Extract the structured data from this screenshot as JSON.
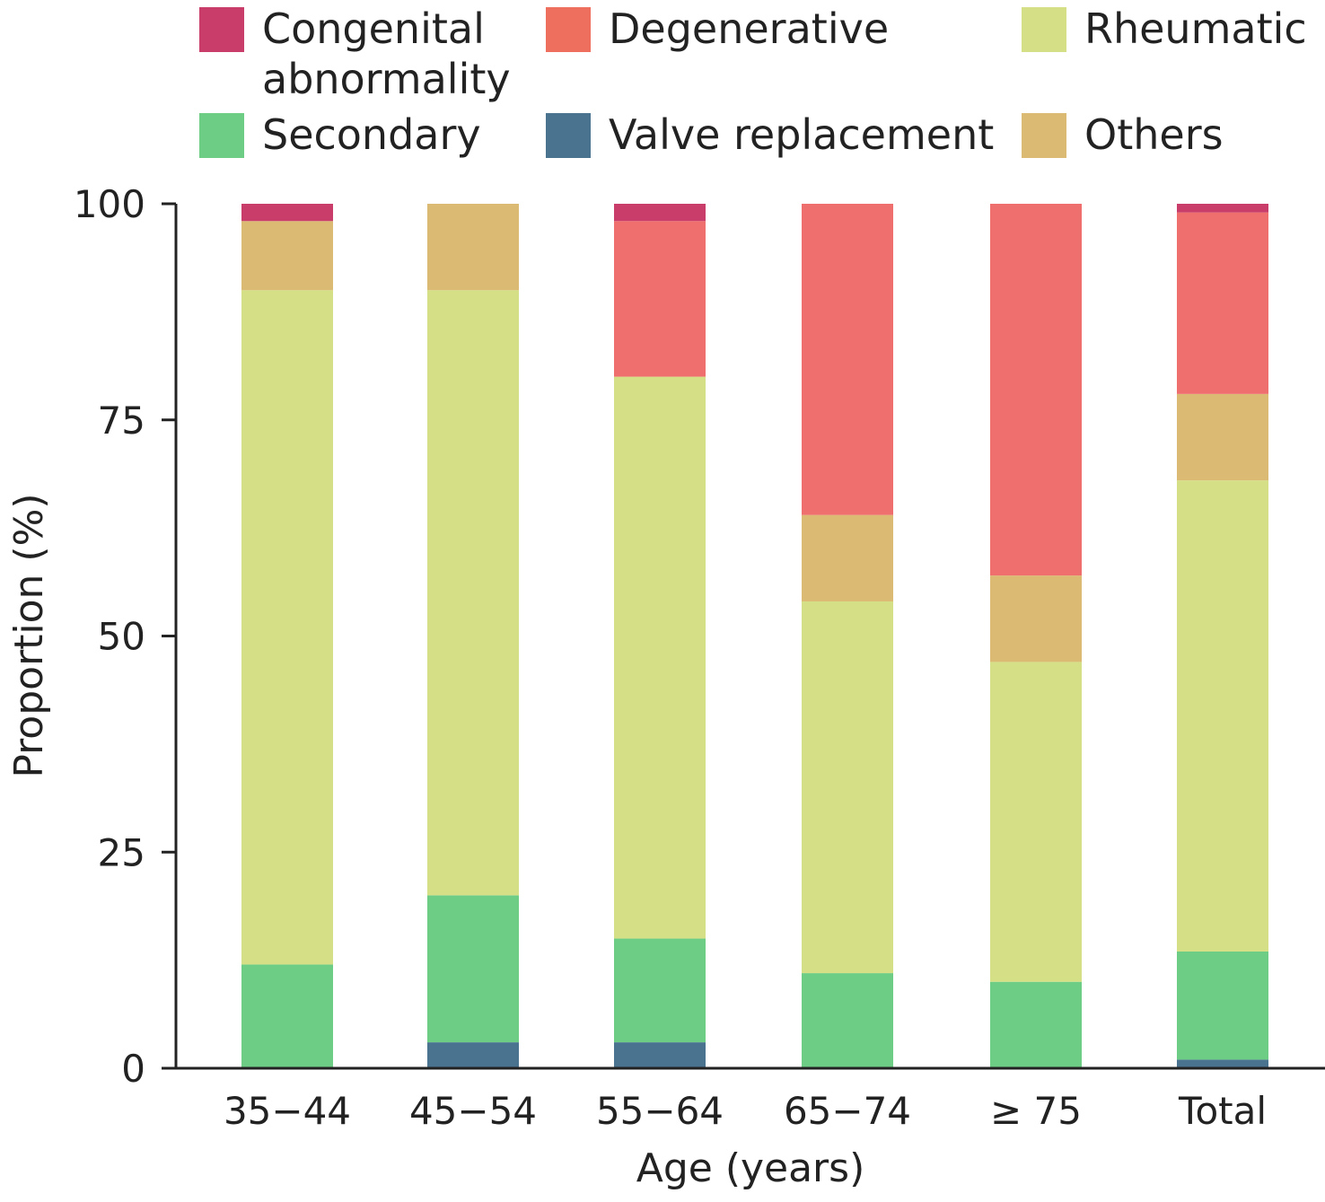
{
  "chart_data": {
    "type": "bar",
    "stacked": true,
    "title": "",
    "xlabel": "Age (years)",
    "ylabel": "Proportion (%)",
    "ylim": [
      0,
      100
    ],
    "yticks": [
      "0",
      "25",
      "50",
      "75",
      "100"
    ],
    "grid": false,
    "legend_position": "top",
    "categories": [
      "35−44",
      "45−54",
      "55−64",
      "65−74",
      "≥ 75",
      "Total"
    ],
    "series": [
      {
        "name": "Valve replacement",
        "color": "#4a7390",
        "values": [
          0,
          3,
          3,
          0,
          0,
          1
        ]
      },
      {
        "name": "Secondary",
        "color": "#6dcd85",
        "values": [
          12,
          17,
          12,
          11,
          10,
          12.5
        ]
      },
      {
        "name": "Rheumatic",
        "color": "#d4df86",
        "values": [
          78,
          70,
          65,
          43,
          37,
          54.5
        ]
      },
      {
        "name": "Others",
        "color": "#dbbb74",
        "values": [
          8,
          10,
          0,
          10,
          10,
          10
        ]
      },
      {
        "name": "Degenerative",
        "color": "#ef6f6f",
        "values": [
          0,
          0,
          18,
          36,
          43,
          21
        ]
      },
      {
        "name": "Congenital abnormality",
        "color": "#c83d69",
        "values": [
          2,
          0,
          2,
          0,
          0,
          1
        ]
      }
    ],
    "legend": [
      {
        "label": "Congenital abnormality",
        "color": "#c83d69"
      },
      {
        "label": "Degenerative",
        "color": "#ef6f5f"
      },
      {
        "label": "Rheumatic",
        "color": "#d4df86"
      },
      {
        "label": "Secondary",
        "color": "#6dcd85"
      },
      {
        "label": "Valve replacement",
        "color": "#4a7390"
      },
      {
        "label": "Others",
        "color": "#dbbb74"
      }
    ]
  }
}
